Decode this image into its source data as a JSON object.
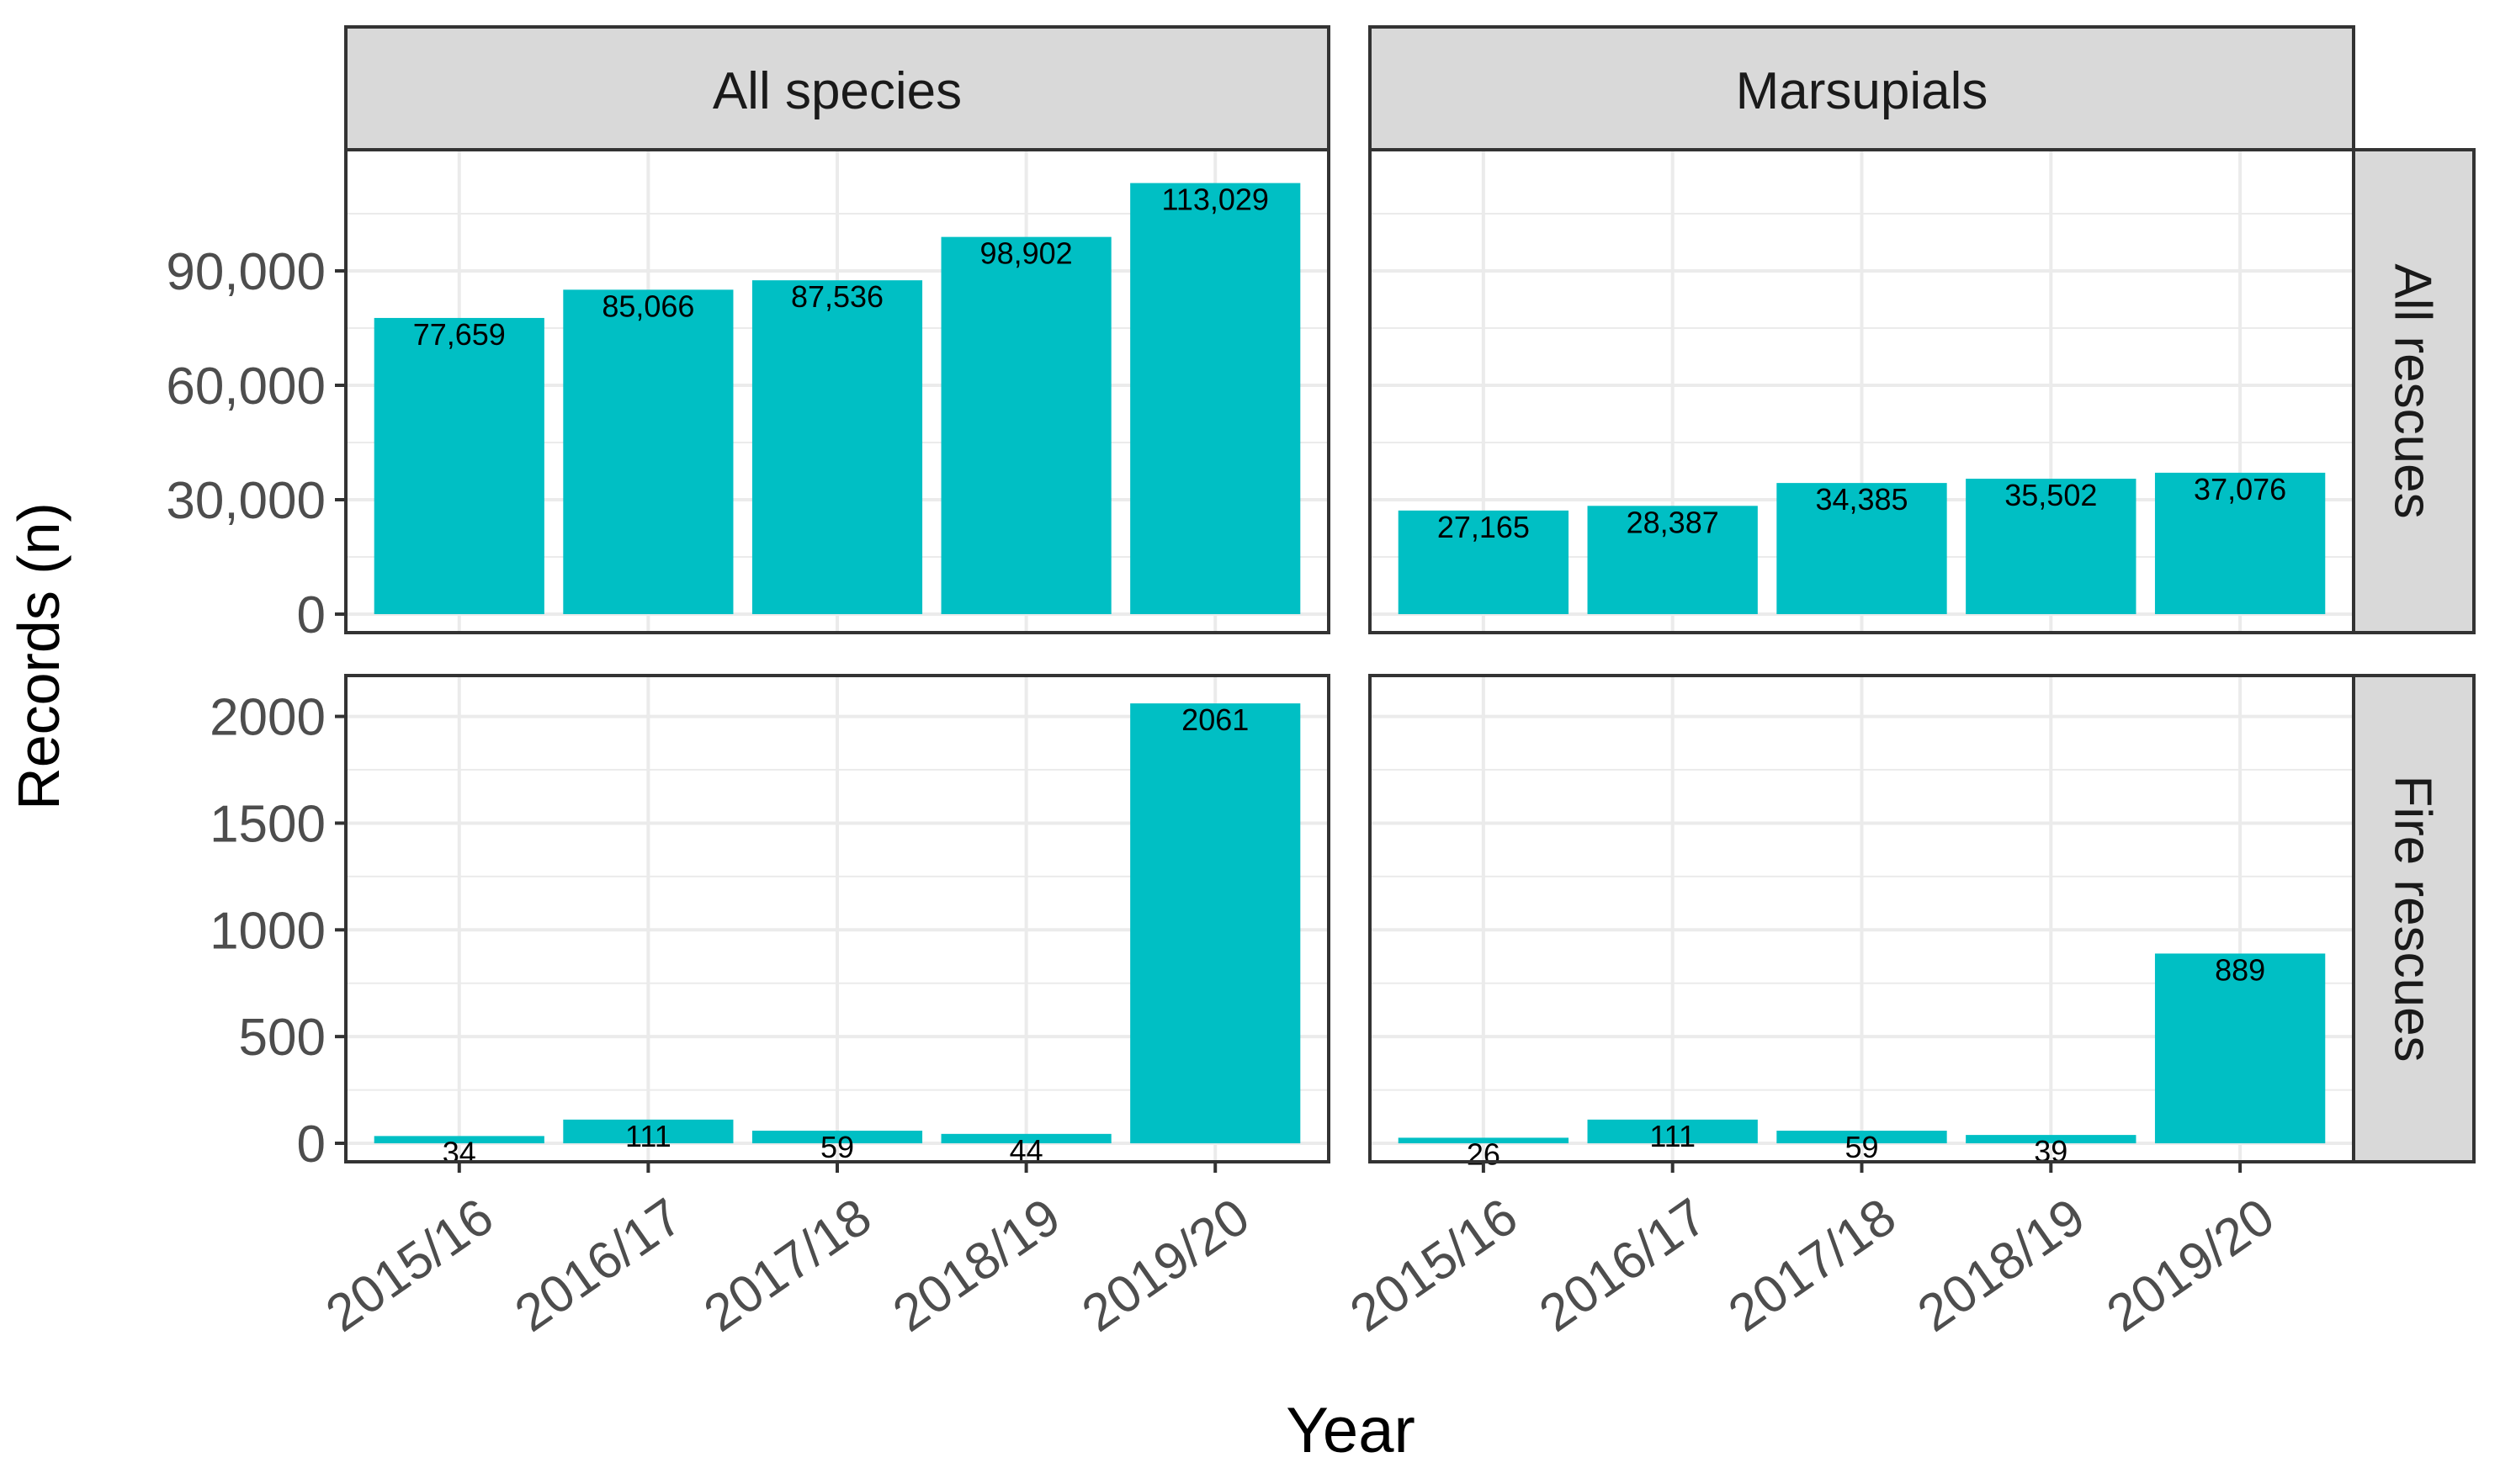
{
  "chart_data": {
    "type": "bar",
    "xlabel": "Year",
    "ylabel": "Records (n)",
    "bar_color": "#00BFC4",
    "categories": [
      "2015/16",
      "2016/17",
      "2017/18",
      "2018/19",
      "2019/20"
    ],
    "facet_columns": [
      "All species",
      "Marsupials"
    ],
    "facet_rows": [
      {
        "name": "All rescues",
        "ylim": [
          0,
          120000
        ],
        "yticks": [
          0,
          30000,
          60000,
          90000
        ],
        "ytick_labels": [
          "0",
          "30,000",
          "60,000",
          "90,000"
        ]
      },
      {
        "name": "Fire rescues",
        "ylim": [
          0,
          2160
        ],
        "yticks": [
          0,
          500,
          1000,
          1500,
          2000
        ],
        "ytick_labels": [
          "0",
          "500",
          "1000",
          "1500",
          "2000"
        ]
      }
    ],
    "panels": [
      {
        "column": "All species",
        "row": "All rescues",
        "values": [
          77659,
          85066,
          87536,
          98902,
          113029
        ],
        "labels": [
          "77,659",
          "85,066",
          "87,536",
          "98,902",
          "113,029"
        ]
      },
      {
        "column": "Marsupials",
        "row": "All rescues",
        "values": [
          27165,
          28387,
          34385,
          35502,
          37076
        ],
        "labels": [
          "27,165",
          "28,387",
          "34,385",
          "35,502",
          "37,076"
        ]
      },
      {
        "column": "All species",
        "row": "Fire rescues",
        "values": [
          34,
          111,
          59,
          44,
          2061
        ],
        "labels": [
          "34",
          "111",
          "59",
          "44",
          "2061"
        ]
      },
      {
        "column": "Marsupials",
        "row": "Fire rescues",
        "values": [
          26,
          111,
          59,
          39,
          889
        ],
        "labels": [
          "26",
          "111",
          "59",
          "39",
          "889"
        ]
      }
    ]
  }
}
